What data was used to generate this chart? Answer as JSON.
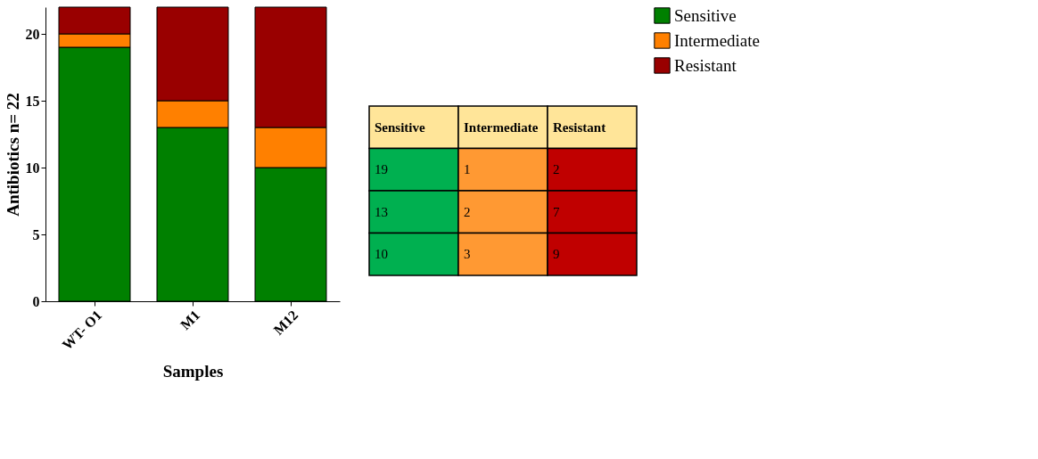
{
  "chart_data": [
    {
      "type": "bar",
      "stacked": true,
      "ylabel": "Antibiotics n= 22",
      "xlabel": "Samples",
      "categories": [
        "WT- O1",
        "M1",
        "M12"
      ],
      "series": [
        {
          "name": "Sensitive",
          "color": "#008000",
          "values": [
            19,
            13,
            10
          ]
        },
        {
          "name": "Intermediate",
          "color": "#ff8000",
          "values": [
            1,
            2,
            3
          ]
        },
        {
          "name": "Resistant",
          "color": "#990000",
          "values": [
            2,
            7,
            9
          ]
        }
      ],
      "ylim": [
        0,
        22
      ],
      "yticks": [
        0,
        5,
        10,
        15,
        20
      ],
      "grid": false,
      "legend": "top right"
    },
    {
      "type": "other",
      "colors": [
        "#00b050",
        "#ff9933",
        "#c00000"
      ],
      "annotations": [
        "Sensitive",
        "Intermediate",
        "Resistant",
        "19",
        "1",
        "2",
        "13",
        "2",
        "7",
        "10",
        "3",
        "9"
      ]
    }
  ]
}
